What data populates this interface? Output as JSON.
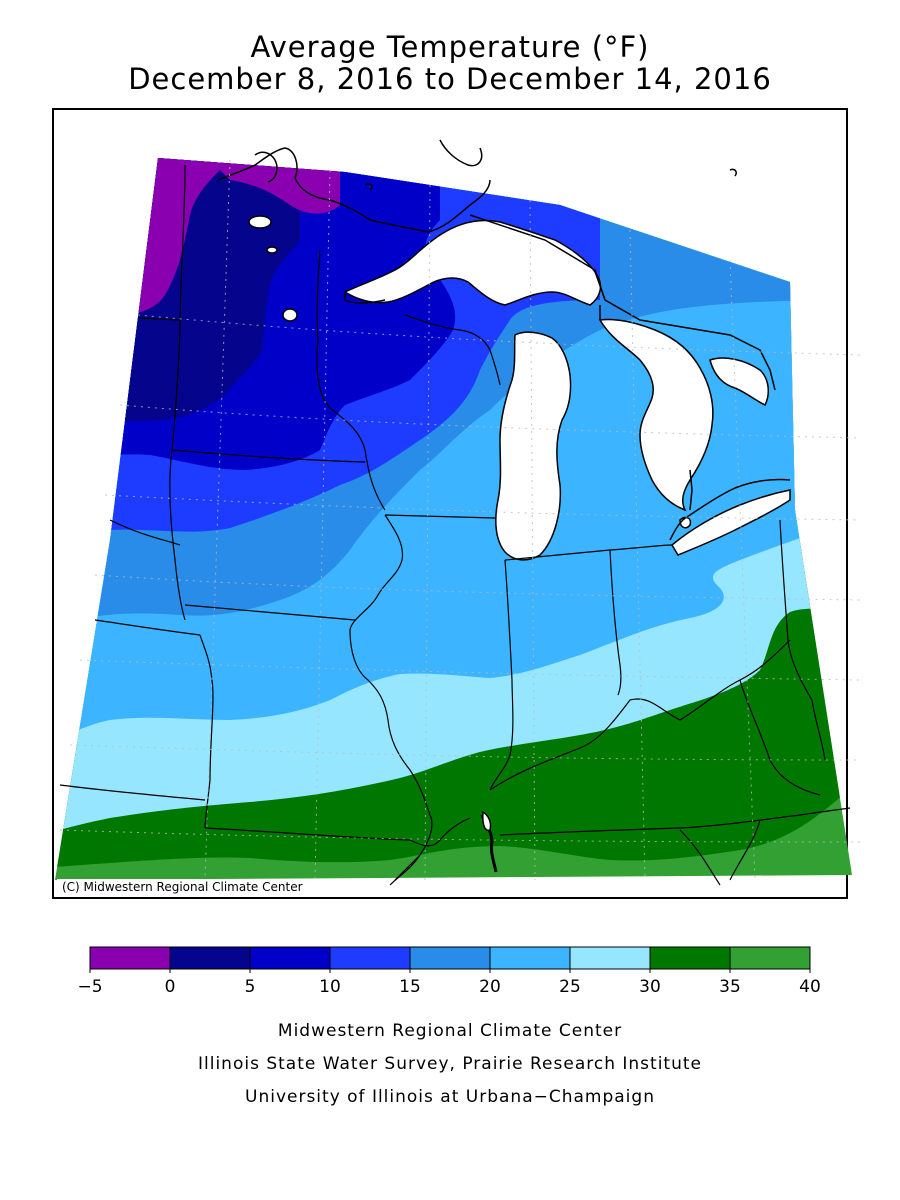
{
  "header": {
    "title": "Average Temperature (°F)",
    "subtitle": "December 8, 2016 to December 14, 2016"
  },
  "map": {
    "copyright": "(C) Midwestern Regional Climate Center"
  },
  "legend": {
    "bins": [
      {
        "min": -5,
        "max": 0,
        "color": "#8a00b0"
      },
      {
        "min": 0,
        "max": 5,
        "color": "#04048c"
      },
      {
        "min": 5,
        "max": 10,
        "color": "#0000c8"
      },
      {
        "min": 10,
        "max": 15,
        "color": "#1e3cff"
      },
      {
        "min": 15,
        "max": 20,
        "color": "#288ce8"
      },
      {
        "min": 20,
        "max": 25,
        "color": "#3cb4ff"
      },
      {
        "min": 25,
        "max": 30,
        "color": "#96e6ff"
      },
      {
        "min": 30,
        "max": 35,
        "color": "#007800"
      },
      {
        "min": 35,
        "max": 40,
        "color": "#32a032"
      }
    ],
    "tick_labels": [
      "−5",
      "0",
      "5",
      "10",
      "15",
      "20",
      "25",
      "30",
      "35",
      "40"
    ]
  },
  "credits": [
    "Midwestern Regional Climate Center",
    "Illinois State Water Survey, Prairie Research Institute",
    "University of Illinois at Urbana−Champaign"
  ]
}
